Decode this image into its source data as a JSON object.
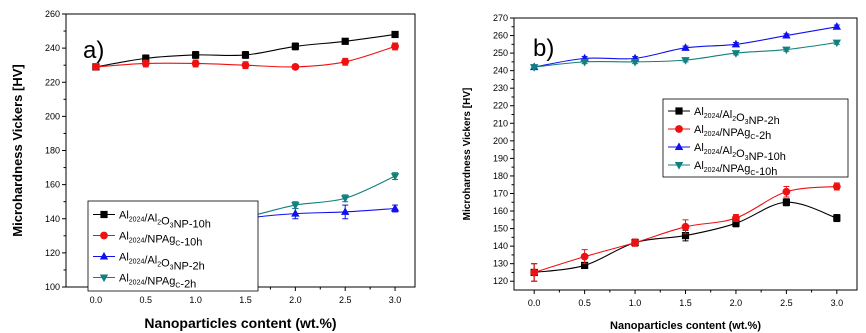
{
  "chart_data": [
    {
      "type": "line",
      "panel_label": "a)",
      "xlabel": "Nanoparticles content (wt.%)",
      "ylabel": "Microhardness Vickers [HV]",
      "x_ticks": [
        "0.0",
        "0.5",
        "1.0",
        "1.5",
        "2.0",
        "2.5",
        "3.0"
      ],
      "y_ticks": [
        "100",
        "120",
        "140",
        "160",
        "180",
        "200",
        "220",
        "240",
        "260"
      ],
      "xlim": [
        -0.3,
        3.2
      ],
      "ylim": [
        100,
        260
      ],
      "grid": false,
      "legend_position": "center-left",
      "x": [
        0.0,
        0.5,
        1.0,
        1.5,
        2.0,
        2.5,
        3.0
      ],
      "series": [
        {
          "name": "Al2024/Al2O3NP-10h",
          "label_parts": [
            [
              "Al",
              ""
            ],
            [
              "2024",
              "sub"
            ],
            [
              "/Al",
              ""
            ],
            [
              "2",
              "sub"
            ],
            [
              "O",
              ""
            ],
            [
              "3",
              "sub"
            ],
            [
              "NP-10h",
              ""
            ]
          ],
          "color": "#000000",
          "marker": "square",
          "values": [
            229,
            234,
            236,
            236,
            241,
            244,
            248
          ],
          "errors": [
            1,
            2,
            2,
            2,
            2,
            1,
            1
          ]
        },
        {
          "name": "Al2024/NPAgC-10h",
          "label_parts": [
            [
              "Al",
              ""
            ],
            [
              "2024",
              "sub"
            ],
            [
              "/NPAg",
              ""
            ],
            [
              "C",
              "sub"
            ],
            [
              "-10h",
              ""
            ]
          ],
          "color": "#ee1111",
          "marker": "circle",
          "values": [
            229,
            231,
            231,
            230,
            229,
            232,
            241
          ],
          "errors": [
            1,
            2,
            2,
            2,
            1,
            2,
            2
          ]
        },
        {
          "name": "Al2024/Al2O3NP-2h",
          "label_parts": [
            [
              "Al",
              ""
            ],
            [
              "2024",
              "sub"
            ],
            [
              "/Al",
              ""
            ],
            [
              "2",
              "sub"
            ],
            [
              "O",
              ""
            ],
            [
              "3",
              "sub"
            ],
            [
              "NP-2h",
              ""
            ]
          ],
          "color": "#1111ee",
          "marker": "triangle-up",
          "values": [
            116,
            122,
            132,
            140,
            143,
            144,
            146
          ],
          "errors": [
            4,
            2,
            2,
            4,
            3,
            4,
            2
          ]
        },
        {
          "name": "Al2024/NPAgC-2h",
          "label_parts": [
            [
              "Al",
              ""
            ],
            [
              "2024",
              "sub"
            ],
            [
              "/NPAg",
              ""
            ],
            [
              "C",
              "sub"
            ],
            [
              "-2h",
              ""
            ]
          ],
          "color": "#118080",
          "marker": "triangle-down",
          "values": [
            116,
            128,
            137,
            141,
            148,
            152,
            165
          ],
          "errors": [
            5,
            4,
            3,
            3,
            2,
            2,
            2
          ]
        }
      ]
    },
    {
      "type": "line",
      "panel_label": "b)",
      "xlabel": "Nanoparticles content (wt.%)",
      "ylabel": "Microhardness Vickers [HV]",
      "x_ticks": [
        "0.0",
        "0.5",
        "1.0",
        "1.5",
        "2.0",
        "2.5",
        "3.0"
      ],
      "y_ticks": [
        "120",
        "130",
        "140",
        "150",
        "160",
        "170",
        "180",
        "190",
        "200",
        "210",
        "220",
        "230",
        "240",
        "250",
        "260",
        "270"
      ],
      "xlim": [
        -0.2,
        3.2
      ],
      "ylim": [
        115,
        270
      ],
      "grid": false,
      "legend_position": "center",
      "x": [
        0.0,
        0.5,
        1.0,
        1.5,
        2.0,
        2.5,
        3.0
      ],
      "series": [
        {
          "name": "Al2024/Al2O3NP-2h",
          "label_parts": [
            [
              "Al",
              ""
            ],
            [
              "2024",
              "sub"
            ],
            [
              "/Al",
              ""
            ],
            [
              "2",
              "sub"
            ],
            [
              "O",
              ""
            ],
            [
              "3",
              "sub"
            ],
            [
              "NP-2h",
              ""
            ]
          ],
          "color": "#000000",
          "marker": "square",
          "values": [
            125,
            129,
            142,
            146,
            153,
            165,
            156
          ],
          "errors": [
            5,
            1,
            2,
            3,
            2,
            2,
            2
          ]
        },
        {
          "name": "Al2024/NPAgC-2h",
          "label_parts": [
            [
              "Al",
              ""
            ],
            [
              "2024",
              "sub"
            ],
            [
              "/NPAg",
              ""
            ],
            [
              "C",
              "sub"
            ],
            [
              "-2h",
              ""
            ]
          ],
          "color": "#ee1111",
          "marker": "circle",
          "values": [
            125,
            134,
            142,
            151,
            156,
            171,
            174
          ],
          "errors": [
            5,
            4,
            2,
            4,
            2,
            3,
            2
          ]
        },
        {
          "name": "Al2024/Al2O3NP-10h",
          "label_parts": [
            [
              "Al",
              ""
            ],
            [
              "2024",
              "sub"
            ],
            [
              "/Al",
              ""
            ],
            [
              "2",
              "sub"
            ],
            [
              "O",
              ""
            ],
            [
              "3",
              "sub"
            ],
            [
              "NP-10h",
              ""
            ]
          ],
          "color": "#1111ee",
          "marker": "triangle-up",
          "values": [
            242,
            247,
            247,
            253,
            255,
            260,
            265
          ],
          "errors": [
            1,
            1,
            1,
            1,
            1,
            1,
            1
          ]
        },
        {
          "name": "Al2024/NPAgC-10h",
          "label_parts": [
            [
              "Al",
              ""
            ],
            [
              "2024",
              "sub"
            ],
            [
              "/NPAg",
              ""
            ],
            [
              "C",
              "sub"
            ],
            [
              "-10h",
              ""
            ]
          ],
          "color": "#118080",
          "marker": "triangle-down",
          "values": [
            242,
            245,
            245,
            246,
            250,
            252,
            256
          ],
          "errors": [
            1,
            1,
            1,
            1,
            1,
            1,
            1
          ]
        }
      ]
    }
  ]
}
